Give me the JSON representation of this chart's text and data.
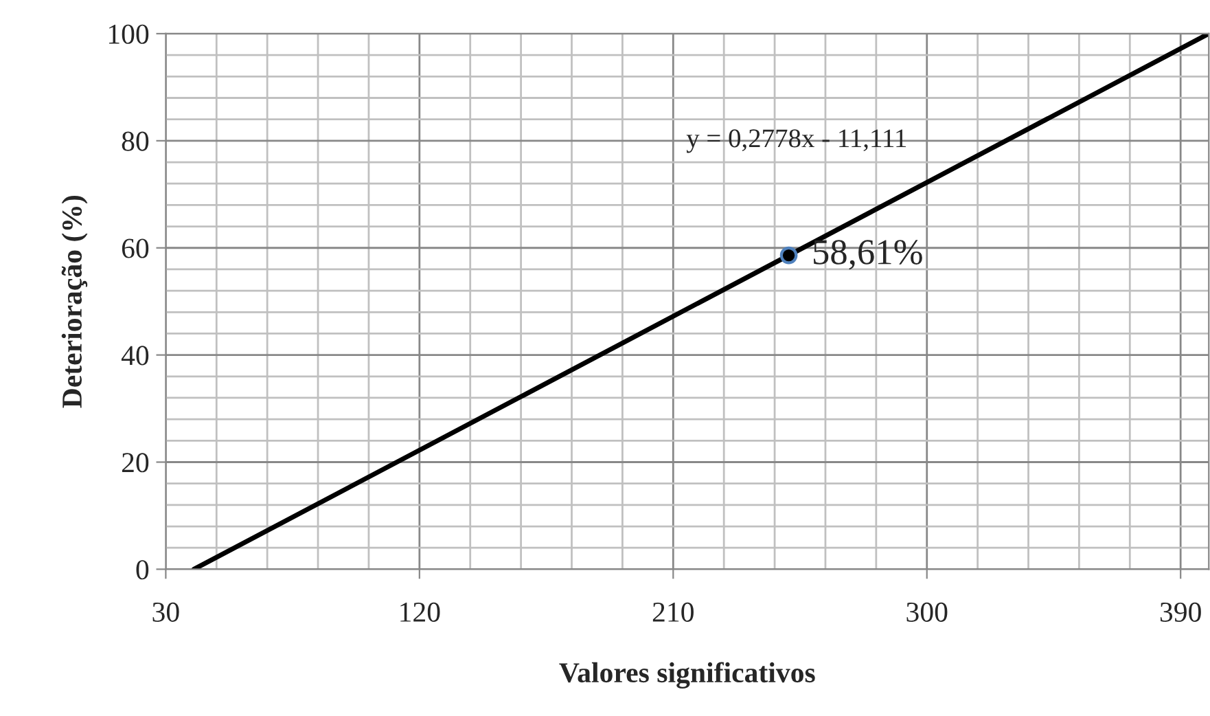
{
  "chart_data": {
    "type": "line",
    "xlabel": "Valores significativos",
    "ylabel": "Deterioração (%)",
    "xlim": [
      30,
      400
    ],
    "xticks": [
      30,
      120,
      210,
      300,
      390
    ],
    "ylim": [
      0,
      100
    ],
    "yticks": [
      0,
      20,
      40,
      60,
      80,
      100
    ],
    "grid": true,
    "series": [
      {
        "color": "#000000",
        "x": [
          40,
          400
        ],
        "values": [
          0,
          100
        ],
        "marker": "none"
      },
      {
        "type": "scatter",
        "color": "#000000",
        "x": [
          251
        ],
        "values": [
          58.61
        ],
        "marker": "circle",
        "value_labels": [
          "58,61%"
        ]
      }
    ],
    "annotations": [
      "y = 0,2778x - 11,111"
    ]
  }
}
